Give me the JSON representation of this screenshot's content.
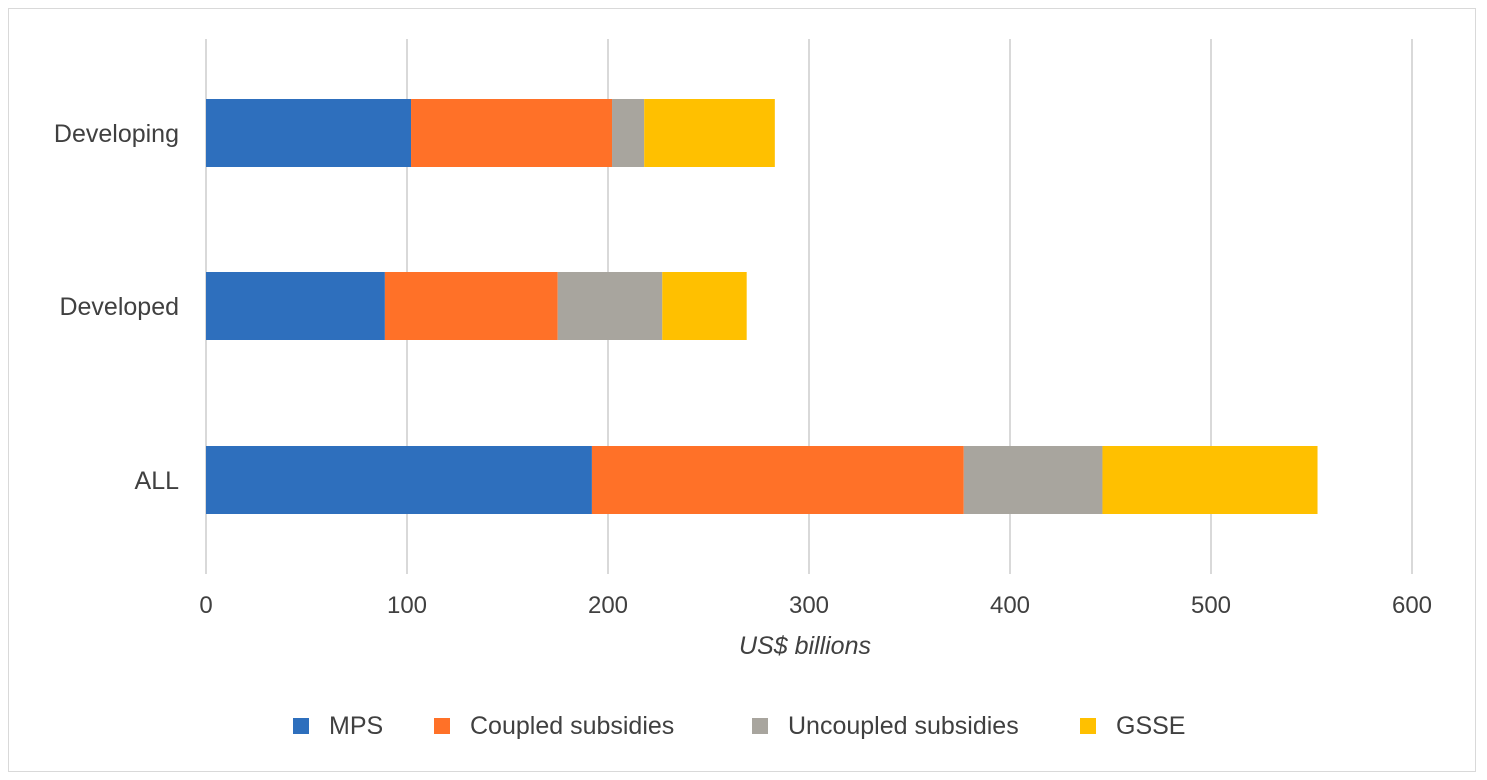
{
  "chart_data": {
    "type": "bar",
    "orientation": "horizontal",
    "stacked": true,
    "categories": [
      "Developing",
      "Developed",
      "ALL"
    ],
    "series": [
      {
        "name": "MPS",
        "color": "#2e6fbd",
        "values": [
          102,
          89,
          192
        ]
      },
      {
        "name": "Coupled subsidies",
        "color": "#ff7128",
        "values": [
          100,
          86,
          185
        ]
      },
      {
        "name": "Uncoupled subsidies",
        "color": "#a8a59e",
        "values": [
          16,
          52,
          69
        ]
      },
      {
        "name": "GSSE",
        "color": "#ffc000",
        "values": [
          65,
          42,
          107
        ]
      }
    ],
    "xlabel": "US$ billions",
    "xlim": [
      0,
      600
    ],
    "xticks": [
      0,
      100,
      200,
      300,
      400,
      500,
      600
    ],
    "grid": "vertical",
    "legend_position": "bottom"
  }
}
